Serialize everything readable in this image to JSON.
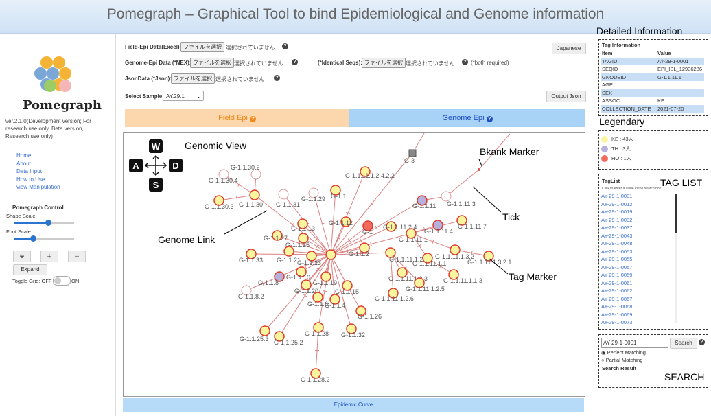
{
  "header": {
    "title": "Pomegraph – Graphical Tool to bind Epidemiological and Genome information"
  },
  "sidebar": {
    "logo_text": "Pomegraph",
    "version": "ver.2.1.0(Development version; For research use only. Beta version, Research use only)",
    "nav": [
      "Home",
      "About",
      "Data Input",
      "How to Use",
      "view Manipulation"
    ],
    "control_title": "Pomegraph Control",
    "shape_scale": "Shape Scale",
    "font_scale": "Font Scale",
    "expand": "Expand",
    "toggle_grid": "Toggle Grid: OFF",
    "toggle_on": "ON"
  },
  "form": {
    "field_epi": "Field-Epi Data(Excel):",
    "genome_epi": "Genome-Epi Data (*NEX):",
    "identical": "(*Identical Seqs):",
    "both_required": "(*both required)",
    "json": "JsonData (*Json):",
    "file_button": "ファイルを選択",
    "no_file": "選択されていません",
    "select_sample": "Select Sample",
    "sample": "AY.29.1",
    "japanese": "Japanese",
    "output_json": "Output Json"
  },
  "tabs": [
    "Field Epi",
    "Genome Epi"
  ],
  "graph": {
    "keys": [
      "W",
      "A",
      "S",
      "D"
    ],
    "annotations": {
      "genomic_view": "Genomic View",
      "genome_link": "Genome Link",
      "blank_marker": "Bkank Marker",
      "tick": "Tick",
      "tag_marker": "Tag Marker"
    },
    "nodes": [
      "G-1.1.30.2",
      "G-1.1.30.4",
      "G-1.1.30.3",
      "G-1.1.30",
      "G-1.1.31",
      "G-1.1.29",
      "G-1.1",
      "G-1.1.11.1.2.4.2.2",
      "G-3",
      "G-1.1.11",
      "G-1.1.11.3",
      "G-1.1.11.7",
      "G-1.1.11.4",
      "G-1.1.11.1",
      "G-1.1.11.2.4",
      "G-1",
      "G-1.1.12",
      "G-1.1.13",
      "G-1.1.27",
      "G-1.1.25",
      "G-1.1.33",
      "G-1.1.21",
      "G-1.1.23",
      "G-1.1.2",
      "G-1.1.11.1.2",
      "G-1.1.11.1.1",
      "G-1.1.11.1.3.2",
      "G-1.1.11.1.3.2.1",
      "G-1.1.11.1.1.3",
      "G-1.1.11.1.2.3",
      "G-1.1.11.1.2.5",
      "G-1.1.11.1.2.6",
      "G-1.1.8",
      "G-1.1.10",
      "G-1.1.20",
      "G-1.1.19",
      "G-1.1.15",
      "G-1.1.6",
      "G-1.1.4",
      "G-1.1.8.2",
      "G-1.1.26",
      "G-1.1.28",
      "G-1.1.32",
      "G-1.1.25.3",
      "G-1.1.25.2",
      "G-1.1.28.2"
    ]
  },
  "epidemic_curve": "Epidemic Curve",
  "panel": {
    "detailed_title": "Detailed Information",
    "tag_info": "Tag Information",
    "table": {
      "header": [
        "Item",
        "Value"
      ],
      "rows": [
        [
          "TAGID",
          "AY-29-1-0001"
        ],
        [
          "SEQID",
          "EPI_ISL_12936286"
        ],
        [
          "GNODEID",
          "G-1.1.11.1"
        ],
        [
          "AGE"
        ],
        [
          "SEX"
        ],
        [
          "ASSOC",
          "KE"
        ],
        [
          "COLLECTION_DATE",
          "2021-07-20"
        ]
      ]
    },
    "legend_title": "Legendary",
    "legend": [
      "KE : 43人",
      "TH : 3人",
      "HO : 1人"
    ],
    "taglist_title": "TAG LIST",
    "taglist_header": "TagList",
    "taglist_hint": "Click to enter a value in the search box.",
    "tags": [
      "AY-29-1-0001",
      "AY-29-1-0012",
      "AY-29-1-0019",
      "AY-29-1-0032",
      "AY-29-1-0037",
      "AY-29-1-0043",
      "AY-29-1-0048",
      "AY-29-1-0053",
      "AY-29-1-0055",
      "AY-29-1-0057",
      "AY-29-1-0059",
      "AY-29-1-0061",
      "AY-29-1-0062",
      "AY-29-1-0067",
      "AY-29-1-0068",
      "AY-29-1-0069",
      "AY-29-1-0073"
    ],
    "search_title": "SEARCH",
    "search_value": "AY-29-1-0001",
    "search_button": "Search",
    "perfect": "Perfect Matching",
    "partial": "Partial Matching",
    "result": "Search Result"
  }
}
